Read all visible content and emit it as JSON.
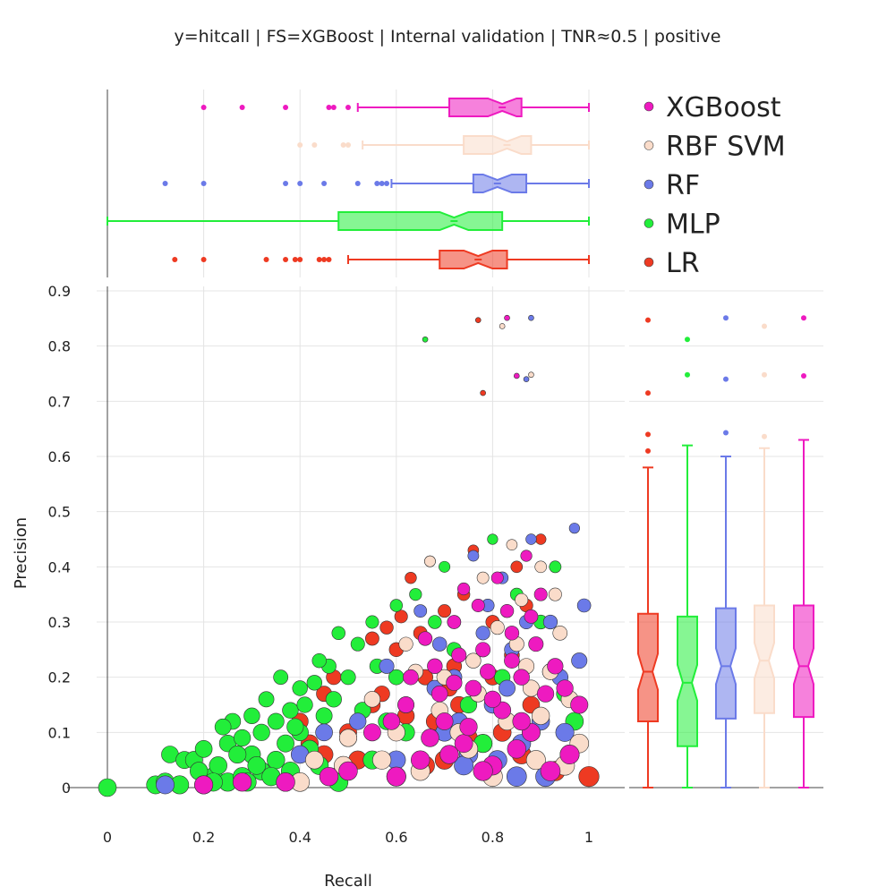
{
  "title": "y=hitcall | FS=XGBoost | Internal validation | TNR≈0.5 | positive",
  "chart_data": {
    "type": "scatter",
    "xlabel": "Recall",
    "ylabel": "Precision",
    "xlim": [
      0,
      1
    ],
    "ylim": [
      0,
      0.9
    ],
    "x_ticks": [
      "0",
      "0.2",
      "0.4",
      "0.6",
      "0.8",
      "1"
    ],
    "y_ticks": [
      "0",
      "0.1",
      "0.2",
      "0.3",
      "0.4",
      "0.5",
      "0.6",
      "0.7",
      "0.8",
      "0.9"
    ],
    "grid": true,
    "legend_position": "top-right",
    "marginal_plots": "notched box plots of Recall (top) and Precision (right) per series",
    "series": [
      {
        "name": "LR",
        "color": "#ee3a22",
        "recall_box": {
          "q1": 0.69,
          "median": 0.77,
          "q3": 0.83,
          "whisker_low": 0.5,
          "whisker_high": 1.0,
          "outliers": [
            0.14,
            0.2,
            0.33,
            0.37,
            0.39,
            0.4,
            0.44,
            0.45,
            0.46
          ]
        },
        "precision_box": {
          "q1": 0.12,
          "median": 0.21,
          "q3": 0.315,
          "whisker_low": 0.0,
          "whisker_high": 0.58,
          "outliers": [
            0.61,
            0.64,
            0.715,
            0.847
          ]
        },
        "points": [
          [
            0.77,
            0.847
          ],
          [
            0.78,
            0.715
          ],
          [
            0.6,
            0.02
          ],
          [
            0.7,
            0.05
          ],
          [
            0.75,
            0.09
          ],
          [
            0.82,
            0.1
          ],
          [
            0.88,
            0.15
          ],
          [
            0.66,
            0.2
          ],
          [
            0.72,
            0.22
          ],
          [
            0.8,
            0.3
          ],
          [
            0.7,
            0.32
          ],
          [
            0.63,
            0.38
          ],
          [
            0.55,
            0.15
          ],
          [
            0.42,
            0.08
          ],
          [
            0.45,
            0.06
          ],
          [
            0.5,
            0.1
          ],
          [
            0.47,
            0.2
          ],
          [
            0.6,
            0.25
          ],
          [
            0.85,
            0.4
          ],
          [
            0.9,
            0.45
          ],
          [
            0.93,
            0.03
          ],
          [
            1.0,
            0.02
          ],
          [
            0.68,
            0.12
          ],
          [
            0.62,
            0.13
          ],
          [
            0.58,
            0.29
          ],
          [
            0.65,
            0.28
          ],
          [
            0.57,
            0.17
          ],
          [
            0.52,
            0.05
          ],
          [
            0.4,
            0.12
          ],
          [
            0.45,
            0.17
          ],
          [
            0.67,
            0.41
          ],
          [
            0.74,
            0.35
          ],
          [
            0.76,
            0.43
          ],
          [
            0.84,
            0.24
          ],
          [
            0.78,
            0.08
          ],
          [
            0.66,
            0.04
          ],
          [
            0.71,
            0.18
          ],
          [
            0.86,
            0.06
          ],
          [
            0.92,
            0.21
          ],
          [
            0.55,
            0.27
          ],
          [
            0.61,
            0.31
          ],
          [
            0.48,
            0.02
          ],
          [
            0.73,
            0.15
          ],
          [
            0.8,
            0.2
          ],
          [
            0.87,
            0.33
          ]
        ]
      },
      {
        "name": "MLP",
        "color": "#22ee3a",
        "recall_box": {
          "q1": 0.48,
          "median": 0.72,
          "q3": 0.82,
          "whisker_low": 0.0,
          "whisker_high": 1.0,
          "outliers": []
        },
        "precision_box": {
          "q1": 0.075,
          "median": 0.19,
          "q3": 0.31,
          "whisker_low": 0.0,
          "whisker_high": 0.62,
          "outliers": [
            0.748,
            0.812
          ]
        },
        "points": [
          [
            0,
            0
          ],
          [
            0.1,
            0.005
          ],
          [
            0.12,
            0.01
          ],
          [
            0.13,
            0.06
          ],
          [
            0.15,
            0.005
          ],
          [
            0.16,
            0.05
          ],
          [
            0.18,
            0.05
          ],
          [
            0.2,
            0.07
          ],
          [
            0.22,
            0.02
          ],
          [
            0.23,
            0.04
          ],
          [
            0.25,
            0.01
          ],
          [
            0.25,
            0.08
          ],
          [
            0.26,
            0.12
          ],
          [
            0.28,
            0.02
          ],
          [
            0.3,
            0.06
          ],
          [
            0.3,
            0.13
          ],
          [
            0.32,
            0.03
          ],
          [
            0.32,
            0.1
          ],
          [
            0.33,
            0.16
          ],
          [
            0.35,
            0.05
          ],
          [
            0.35,
            0.12
          ],
          [
            0.36,
            0.2
          ],
          [
            0.38,
            0.03
          ],
          [
            0.38,
            0.14
          ],
          [
            0.4,
            0.1
          ],
          [
            0.4,
            0.18
          ],
          [
            0.42,
            0.07
          ],
          [
            0.43,
            0.19
          ],
          [
            0.44,
            0.04
          ],
          [
            0.45,
            0.13
          ],
          [
            0.46,
            0.22
          ],
          [
            0.48,
            0.01
          ],
          [
            0.48,
            0.28
          ],
          [
            0.5,
            0.09
          ],
          [
            0.5,
            0.2
          ],
          [
            0.52,
            0.26
          ],
          [
            0.55,
            0.05
          ],
          [
            0.55,
            0.3
          ],
          [
            0.58,
            0.12
          ],
          [
            0.6,
            0.2
          ],
          [
            0.6,
            0.33
          ],
          [
            0.62,
            0.1
          ],
          [
            0.64,
            0.35
          ],
          [
            0.66,
            0.812
          ],
          [
            0.7,
            0.4
          ],
          [
            0.72,
            0.25
          ],
          [
            0.75,
            0.15
          ],
          [
            0.8,
            0.45
          ],
          [
            0.85,
            0.35
          ],
          [
            0.9,
            0.3
          ],
          [
            0.95,
            0.17
          ],
          [
            0.22,
            0.01
          ],
          [
            0.28,
            0.09
          ],
          [
            0.34,
            0.02
          ],
          [
            0.19,
            0.03
          ],
          [
            0.27,
            0.06
          ],
          [
            0.31,
            0.04
          ],
          [
            0.37,
            0.08
          ],
          [
            0.41,
            0.15
          ],
          [
            0.24,
            0.11
          ],
          [
            0.29,
            0.01
          ],
          [
            0.39,
            0.11
          ],
          [
            0.44,
            0.23
          ],
          [
            0.47,
            0.16
          ],
          [
            0.53,
            0.14
          ],
          [
            0.56,
            0.22
          ],
          [
            0.68,
            0.3
          ],
          [
            0.7,
            0.1
          ],
          [
            0.78,
            0.08
          ],
          [
            0.82,
            0.2
          ],
          [
            0.88,
            0.1
          ],
          [
            0.93,
            0.4
          ],
          [
            0.97,
            0.12
          ]
        ]
      },
      {
        "name": "RF",
        "color": "#6b7ae8",
        "recall_box": {
          "q1": 0.76,
          "median": 0.81,
          "q3": 0.87,
          "whisker_low": 0.59,
          "whisker_high": 1.0,
          "outliers": [
            0.12,
            0.2,
            0.37,
            0.4,
            0.45,
            0.52,
            0.56,
            0.57,
            0.58
          ]
        },
        "precision_box": {
          "q1": 0.125,
          "median": 0.22,
          "q3": 0.325,
          "whisker_low": 0.0,
          "whisker_high": 0.6,
          "outliers": [
            0.643,
            0.74,
            0.851
          ]
        },
        "points": [
          [
            0.88,
            0.851
          ],
          [
            0.87,
            0.74
          ],
          [
            0.12,
            0.005
          ],
          [
            0.2,
            0.005
          ],
          [
            0.37,
            0.01
          ],
          [
            0.4,
            0.06
          ],
          [
            0.45,
            0.1
          ],
          [
            0.52,
            0.12
          ],
          [
            0.6,
            0.05
          ],
          [
            0.7,
            0.1
          ],
          [
            0.75,
            0.06
          ],
          [
            0.8,
            0.15
          ],
          [
            0.85,
            0.02
          ],
          [
            0.9,
            0.12
          ],
          [
            0.95,
            0.1
          ],
          [
            0.98,
            0.23
          ],
          [
            0.99,
            0.33
          ],
          [
            0.92,
            0.3
          ],
          [
            0.88,
            0.45
          ],
          [
            0.82,
            0.38
          ],
          [
            0.78,
            0.28
          ],
          [
            0.72,
            0.2
          ],
          [
            0.65,
            0.32
          ],
          [
            0.68,
            0.18
          ],
          [
            0.76,
            0.42
          ],
          [
            0.84,
            0.25
          ],
          [
            0.86,
            0.08
          ],
          [
            0.94,
            0.2
          ],
          [
            0.97,
            0.47
          ],
          [
            0.62,
            0.15
          ],
          [
            0.58,
            0.22
          ],
          [
            0.81,
            0.05
          ],
          [
            0.74,
            0.04
          ],
          [
            0.79,
            0.33
          ],
          [
            0.91,
            0.02
          ],
          [
            0.96,
            0.06
          ],
          [
            0.69,
            0.26
          ],
          [
            0.83,
            0.18
          ],
          [
            0.87,
            0.3
          ],
          [
            0.73,
            0.12
          ]
        ]
      },
      {
        "name": "RBF SVM",
        "color": "#fadcca",
        "recall_box": {
          "q1": 0.74,
          "median": 0.83,
          "q3": 0.88,
          "whisker_low": 0.53,
          "whisker_high": 1.0,
          "outliers": [
            0.4,
            0.43,
            0.49,
            0.5
          ]
        },
        "precision_box": {
          "q1": 0.135,
          "median": 0.23,
          "q3": 0.33,
          "whisker_low": 0.0,
          "whisker_high": 0.615,
          "outliers": [
            0.636,
            0.748,
            0.836
          ]
        },
        "points": [
          [
            0.82,
            0.836
          ],
          [
            0.88,
            0.748
          ],
          [
            0.4,
            0.01
          ],
          [
            0.43,
            0.05
          ],
          [
            0.49,
            0.04
          ],
          [
            0.5,
            0.09
          ],
          [
            0.55,
            0.16
          ],
          [
            0.6,
            0.1
          ],
          [
            0.65,
            0.03
          ],
          [
            0.7,
            0.2
          ],
          [
            0.75,
            0.07
          ],
          [
            0.8,
            0.02
          ],
          [
            0.85,
            0.26
          ],
          [
            0.9,
            0.13
          ],
          [
            0.95,
            0.04
          ],
          [
            0.98,
            0.08
          ],
          [
            0.92,
            0.21
          ],
          [
            0.86,
            0.34
          ],
          [
            0.78,
            0.38
          ],
          [
            0.72,
            0.3
          ],
          [
            0.67,
            0.41
          ],
          [
            0.83,
            0.12
          ],
          [
            0.88,
            0.18
          ],
          [
            0.93,
            0.35
          ],
          [
            0.76,
            0.23
          ],
          [
            0.69,
            0.14
          ],
          [
            0.62,
            0.26
          ],
          [
            0.57,
            0.05
          ],
          [
            0.81,
            0.29
          ],
          [
            0.89,
            0.05
          ],
          [
            0.96,
            0.16
          ],
          [
            0.73,
            0.1
          ],
          [
            0.84,
            0.44
          ],
          [
            0.9,
            0.4
          ],
          [
            0.77,
            0.17
          ],
          [
            0.64,
            0.21
          ],
          [
            0.71,
            0.06
          ],
          [
            0.87,
            0.22
          ],
          [
            0.94,
            0.28
          ]
        ]
      },
      {
        "name": "XGBoost",
        "color": "#ee1ac0",
        "recall_box": {
          "q1": 0.71,
          "median": 0.82,
          "q3": 0.86,
          "whisker_low": 0.52,
          "whisker_high": 1.0,
          "outliers": [
            0.2,
            0.28,
            0.37,
            0.46,
            0.47,
            0.5
          ]
        },
        "precision_box": {
          "q1": 0.128,
          "median": 0.22,
          "q3": 0.33,
          "whisker_low": 0.0,
          "whisker_high": 0.63,
          "outliers": [
            0.746,
            0.851
          ]
        },
        "points": [
          [
            0.83,
            0.851
          ],
          [
            0.85,
            0.746
          ],
          [
            0.2,
            0.005
          ],
          [
            0.28,
            0.01
          ],
          [
            0.37,
            0.01
          ],
          [
            0.46,
            0.02
          ],
          [
            0.5,
            0.03
          ],
          [
            0.55,
            0.1
          ],
          [
            0.6,
            0.02
          ],
          [
            0.62,
            0.15
          ],
          [
            0.65,
            0.05
          ],
          [
            0.68,
            0.22
          ],
          [
            0.7,
            0.12
          ],
          [
            0.72,
            0.3
          ],
          [
            0.74,
            0.08
          ],
          [
            0.76,
            0.18
          ],
          [
            0.78,
            0.25
          ],
          [
            0.8,
            0.04
          ],
          [
            0.82,
            0.14
          ],
          [
            0.84,
            0.28
          ],
          [
            0.86,
            0.2
          ],
          [
            0.88,
            0.1
          ],
          [
            0.9,
            0.35
          ],
          [
            0.92,
            0.03
          ],
          [
            0.95,
            0.18
          ],
          [
            0.98,
            0.15
          ],
          [
            0.81,
            0.38
          ],
          [
            0.77,
            0.33
          ],
          [
            0.73,
            0.24
          ],
          [
            0.69,
            0.17
          ],
          [
            0.66,
            0.27
          ],
          [
            0.63,
            0.2
          ],
          [
            0.59,
            0.12
          ],
          [
            0.87,
            0.42
          ],
          [
            0.83,
            0.32
          ],
          [
            0.79,
            0.21
          ],
          [
            0.75,
            0.11
          ],
          [
            0.71,
            0.06
          ],
          [
            0.85,
            0.07
          ],
          [
            0.89,
            0.26
          ],
          [
            0.93,
            0.22
          ],
          [
            0.96,
            0.06
          ],
          [
            0.8,
            0.16
          ],
          [
            0.78,
            0.03
          ],
          [
            0.74,
            0.36
          ],
          [
            0.86,
            0.12
          ],
          [
            0.91,
            0.17
          ],
          [
            0.67,
            0.09
          ],
          [
            0.72,
            0.19
          ],
          [
            0.84,
            0.23
          ],
          [
            0.88,
            0.31
          ]
        ]
      }
    ]
  }
}
